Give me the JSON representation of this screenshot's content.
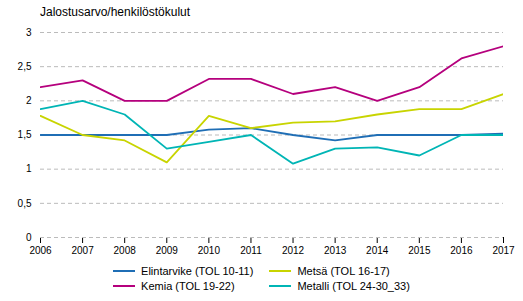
{
  "chart_data": {
    "type": "line",
    "title": "Jalostusarvo/henkilöstökulut",
    "x": [
      2006,
      2007,
      2008,
      2009,
      2010,
      2011,
      2012,
      2013,
      2014,
      2015,
      2016,
      2017
    ],
    "series": [
      {
        "name": "Elintarvike (TOL 10-11)",
        "color": "#1f6eb5",
        "values": [
          1.5,
          1.5,
          1.5,
          1.5,
          1.58,
          1.6,
          1.5,
          1.42,
          1.5,
          1.5,
          1.5,
          1.52
        ]
      },
      {
        "name": "Metsä (TOL 16-17)",
        "color": "#c8d400",
        "values": [
          1.78,
          1.5,
          1.42,
          1.1,
          1.78,
          1.6,
          1.68,
          1.7,
          1.8,
          1.88,
          1.88,
          2.1
        ]
      },
      {
        "name": "Kemia (TOL 19-22)",
        "color": "#b5007d",
        "values": [
          2.2,
          2.3,
          2.0,
          2.0,
          2.32,
          2.32,
          2.1,
          2.2,
          2.0,
          2.2,
          2.62,
          2.8
        ]
      },
      {
        "name": "Metalli (TOL 24-30_33)",
        "color": "#00b5b5",
        "values": [
          1.88,
          2.0,
          1.8,
          1.3,
          1.4,
          1.5,
          1.08,
          1.3,
          1.32,
          1.2,
          1.5,
          1.5
        ]
      }
    ],
    "xlim": [
      2006,
      2017
    ],
    "xticks": [
      2006,
      2007,
      2008,
      2009,
      2010,
      2011,
      2012,
      2013,
      2014,
      2015,
      2016,
      2017
    ],
    "ylim": [
      0,
      3
    ],
    "yticks": [
      0,
      {
        "value": 0.5,
        "label": "0,5"
      },
      1,
      {
        "value": 1.5,
        "label": "1,5"
      },
      2,
      {
        "value": 2.5,
        "label": "2,5"
      },
      3
    ],
    "grid": true,
    "legend": "bottom"
  }
}
